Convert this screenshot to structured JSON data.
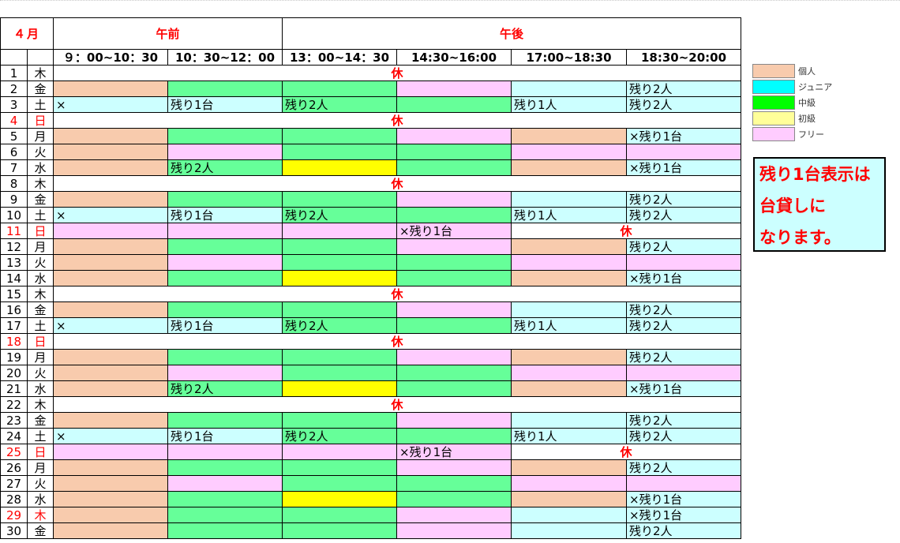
{
  "month": "４月",
  "periods": {
    "am": "午前",
    "pm": "午後"
  },
  "slots": [
    "９：00~10：30",
    "10：30~12：00",
    "13：00~14：30",
    "14:30~16:00",
    "17:00~18:30",
    "18:30~20:00"
  ],
  "holiday_label": "休",
  "colors": {
    "individual": "#f8cbad",
    "junior": "#ccffff",
    "intermediate": "#66ff99",
    "beginner": "#ffff00",
    "free": "#ffccff",
    "none": "#ffffff"
  },
  "rows": [
    {
      "d": "1",
      "w": "木",
      "holiday": true
    },
    {
      "d": "2",
      "w": "金",
      "cells": [
        [
          "individual",
          ""
        ],
        [
          "intermediate",
          ""
        ],
        [
          "intermediate",
          ""
        ],
        [
          "free",
          ""
        ],
        [
          "junior",
          ""
        ],
        [
          "junior",
          "残り2人"
        ]
      ]
    },
    {
      "d": "3",
      "w": "土",
      "cells": [
        [
          "junior",
          "×"
        ],
        [
          "junior",
          "残り1台"
        ],
        [
          "intermediate",
          "残り2人"
        ],
        [
          "intermediate",
          ""
        ],
        [
          "junior",
          "残り1人"
        ],
        [
          "junior",
          "残り2人"
        ]
      ]
    },
    {
      "d": "4",
      "w": "日",
      "red": true,
      "holiday": true
    },
    {
      "d": "5",
      "w": "月",
      "cells": [
        [
          "individual",
          ""
        ],
        [
          "intermediate",
          ""
        ],
        [
          "intermediate",
          ""
        ],
        [
          "free",
          ""
        ],
        [
          "individual",
          ""
        ],
        [
          "junior",
          "×残り1台"
        ]
      ]
    },
    {
      "d": "6",
      "w": "火",
      "cells": [
        [
          "individual",
          ""
        ],
        [
          "free",
          ""
        ],
        [
          "intermediate",
          ""
        ],
        [
          "intermediate",
          ""
        ],
        [
          "free",
          ""
        ],
        [
          "free",
          ""
        ]
      ]
    },
    {
      "d": "7",
      "w": "水",
      "cells": [
        [
          "individual",
          ""
        ],
        [
          "intermediate",
          "残り2人"
        ],
        [
          "beginner",
          ""
        ],
        [
          "intermediate",
          ""
        ],
        [
          "individual",
          ""
        ],
        [
          "junior",
          "×残り1台"
        ]
      ]
    },
    {
      "d": "8",
      "w": "木",
      "holiday": true
    },
    {
      "d": "9",
      "w": "金",
      "cells": [
        [
          "individual",
          ""
        ],
        [
          "intermediate",
          ""
        ],
        [
          "intermediate",
          ""
        ],
        [
          "free",
          ""
        ],
        [
          "junior",
          ""
        ],
        [
          "junior",
          "残り2人"
        ]
      ]
    },
    {
      "d": "10",
      "w": "土",
      "cells": [
        [
          "junior",
          "×"
        ],
        [
          "junior",
          "残り1台"
        ],
        [
          "intermediate",
          "残り2人"
        ],
        [
          "intermediate",
          ""
        ],
        [
          "junior",
          "残り1人"
        ],
        [
          "junior",
          "残り2人"
        ]
      ]
    },
    {
      "d": "11",
      "w": "日",
      "red": true,
      "partial": [
        [
          "free",
          ""
        ],
        [
          "free",
          ""
        ],
        [
          "free",
          ""
        ],
        [
          "free",
          "×残り1台"
        ]
      ]
    },
    {
      "d": "12",
      "w": "月",
      "cells": [
        [
          "individual",
          ""
        ],
        [
          "intermediate",
          ""
        ],
        [
          "intermediate",
          ""
        ],
        [
          "free",
          ""
        ],
        [
          "individual",
          ""
        ],
        [
          "junior",
          "残り2人"
        ]
      ]
    },
    {
      "d": "13",
      "w": "火",
      "cells": [
        [
          "individual",
          ""
        ],
        [
          "free",
          ""
        ],
        [
          "intermediate",
          ""
        ],
        [
          "intermediate",
          ""
        ],
        [
          "free",
          ""
        ],
        [
          "free",
          ""
        ]
      ]
    },
    {
      "d": "14",
      "w": "水",
      "cells": [
        [
          "individual",
          ""
        ],
        [
          "intermediate",
          ""
        ],
        [
          "beginner",
          ""
        ],
        [
          "intermediate",
          ""
        ],
        [
          "individual",
          ""
        ],
        [
          "junior",
          "×残り1台"
        ]
      ]
    },
    {
      "d": "15",
      "w": "木",
      "holiday": true
    },
    {
      "d": "16",
      "w": "金",
      "cells": [
        [
          "individual",
          ""
        ],
        [
          "intermediate",
          ""
        ],
        [
          "intermediate",
          ""
        ],
        [
          "free",
          ""
        ],
        [
          "junior",
          ""
        ],
        [
          "junior",
          "残り2人"
        ]
      ]
    },
    {
      "d": "17",
      "w": "土",
      "cells": [
        [
          "junior",
          "×"
        ],
        [
          "junior",
          "残り1台"
        ],
        [
          "intermediate",
          "残り2人"
        ],
        [
          "intermediate",
          ""
        ],
        [
          "junior",
          "残り1人"
        ],
        [
          "junior",
          "残り2人"
        ]
      ]
    },
    {
      "d": "18",
      "w": "日",
      "red": true,
      "holiday": true
    },
    {
      "d": "19",
      "w": "月",
      "cells": [
        [
          "individual",
          ""
        ],
        [
          "intermediate",
          ""
        ],
        [
          "intermediate",
          ""
        ],
        [
          "free",
          ""
        ],
        [
          "individual",
          ""
        ],
        [
          "junior",
          "残り2人"
        ]
      ]
    },
    {
      "d": "20",
      "w": "火",
      "cells": [
        [
          "individual",
          ""
        ],
        [
          "free",
          ""
        ],
        [
          "intermediate",
          ""
        ],
        [
          "intermediate",
          ""
        ],
        [
          "free",
          ""
        ],
        [
          "free",
          ""
        ]
      ]
    },
    {
      "d": "21",
      "w": "水",
      "cells": [
        [
          "individual",
          ""
        ],
        [
          "intermediate",
          "残り2人"
        ],
        [
          "beginner",
          ""
        ],
        [
          "intermediate",
          ""
        ],
        [
          "individual",
          ""
        ],
        [
          "junior",
          "×残り1台"
        ]
      ]
    },
    {
      "d": "22",
      "w": "木",
      "holiday": true
    },
    {
      "d": "23",
      "w": "金",
      "cells": [
        [
          "individual",
          ""
        ],
        [
          "intermediate",
          ""
        ],
        [
          "intermediate",
          ""
        ],
        [
          "free",
          ""
        ],
        [
          "junior",
          ""
        ],
        [
          "junior",
          "残り2人"
        ]
      ]
    },
    {
      "d": "24",
      "w": "土",
      "cells": [
        [
          "junior",
          "×"
        ],
        [
          "junior",
          "残り1台"
        ],
        [
          "intermediate",
          "残り2人"
        ],
        [
          "intermediate",
          ""
        ],
        [
          "junior",
          "残り1人"
        ],
        [
          "junior",
          "残り2人"
        ]
      ]
    },
    {
      "d": "25",
      "w": "日",
      "red": true,
      "partial": [
        [
          "free",
          ""
        ],
        [
          "free",
          ""
        ],
        [
          "free",
          ""
        ],
        [
          "free",
          "×残り1台"
        ]
      ]
    },
    {
      "d": "26",
      "w": "月",
      "cells": [
        [
          "individual",
          ""
        ],
        [
          "intermediate",
          ""
        ],
        [
          "intermediate",
          ""
        ],
        [
          "free",
          ""
        ],
        [
          "individual",
          ""
        ],
        [
          "junior",
          "残り2人"
        ]
      ]
    },
    {
      "d": "27",
      "w": "火",
      "cells": [
        [
          "individual",
          ""
        ],
        [
          "free",
          ""
        ],
        [
          "intermediate",
          ""
        ],
        [
          "intermediate",
          ""
        ],
        [
          "free",
          ""
        ],
        [
          "free",
          ""
        ]
      ]
    },
    {
      "d": "28",
      "w": "水",
      "cells": [
        [
          "individual",
          ""
        ],
        [
          "intermediate",
          ""
        ],
        [
          "beginner",
          ""
        ],
        [
          "intermediate",
          ""
        ],
        [
          "individual",
          ""
        ],
        [
          "junior",
          "×残り1台"
        ]
      ]
    },
    {
      "d": "29",
      "w": "木",
      "red": true,
      "cells": [
        [
          "individual",
          ""
        ],
        [
          "intermediate",
          ""
        ],
        [
          "intermediate",
          ""
        ],
        [
          "free",
          ""
        ],
        [
          "junior",
          ""
        ],
        [
          "junior",
          "×残り1台"
        ]
      ]
    },
    {
      "d": "30",
      "w": "金",
      "cells": [
        [
          "individual",
          ""
        ],
        [
          "intermediate",
          ""
        ],
        [
          "intermediate",
          ""
        ],
        [
          "free",
          ""
        ],
        [
          "junior",
          ""
        ],
        [
          "junior",
          "残り2人"
        ]
      ]
    }
  ],
  "legend": [
    {
      "key": "individual",
      "label": "個人"
    },
    {
      "key": "junior_legend",
      "label": "ジュニア"
    },
    {
      "key": "intermediate_legend",
      "label": "中級"
    },
    {
      "key": "beginner_legend",
      "label": "初級"
    },
    {
      "key": "free",
      "label": "フリー"
    }
  ],
  "legend_colors": {
    "individual": "#f8cbad",
    "junior_legend": "#00ffff",
    "intermediate_legend": "#00ff00",
    "beginner_legend": "#ffff99",
    "free": "#ffccff"
  },
  "note": [
    "残り1台表示は",
    "台貸しに",
    "なります。"
  ]
}
